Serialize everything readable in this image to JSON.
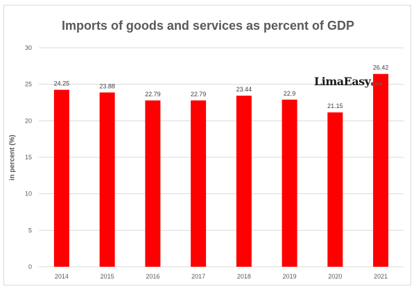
{
  "chart_data": {
    "type": "bar",
    "title": "Imports of goods and services as percent of GDP",
    "xlabel": "",
    "ylabel": "in percent (%)",
    "categories": [
      "2014",
      "2015",
      "2016",
      "2017",
      "2018",
      "2019",
      "2020",
      "2021"
    ],
    "values": [
      24.25,
      23.88,
      22.79,
      22.79,
      23.44,
      22.9,
      21.15,
      26.42
    ],
    "data_labels": [
      "24.25",
      "23.88",
      "22.79",
      "22.79",
      "23.44",
      "22.9",
      "21.15",
      "26.42"
    ],
    "ylim": [
      0,
      30
    ],
    "yticks": [
      "0",
      "5",
      "10",
      "15",
      "20",
      "25",
      "30"
    ],
    "grid": true,
    "bar_color": "#ff0000",
    "legend": "none"
  },
  "watermark": "LimaEasy"
}
